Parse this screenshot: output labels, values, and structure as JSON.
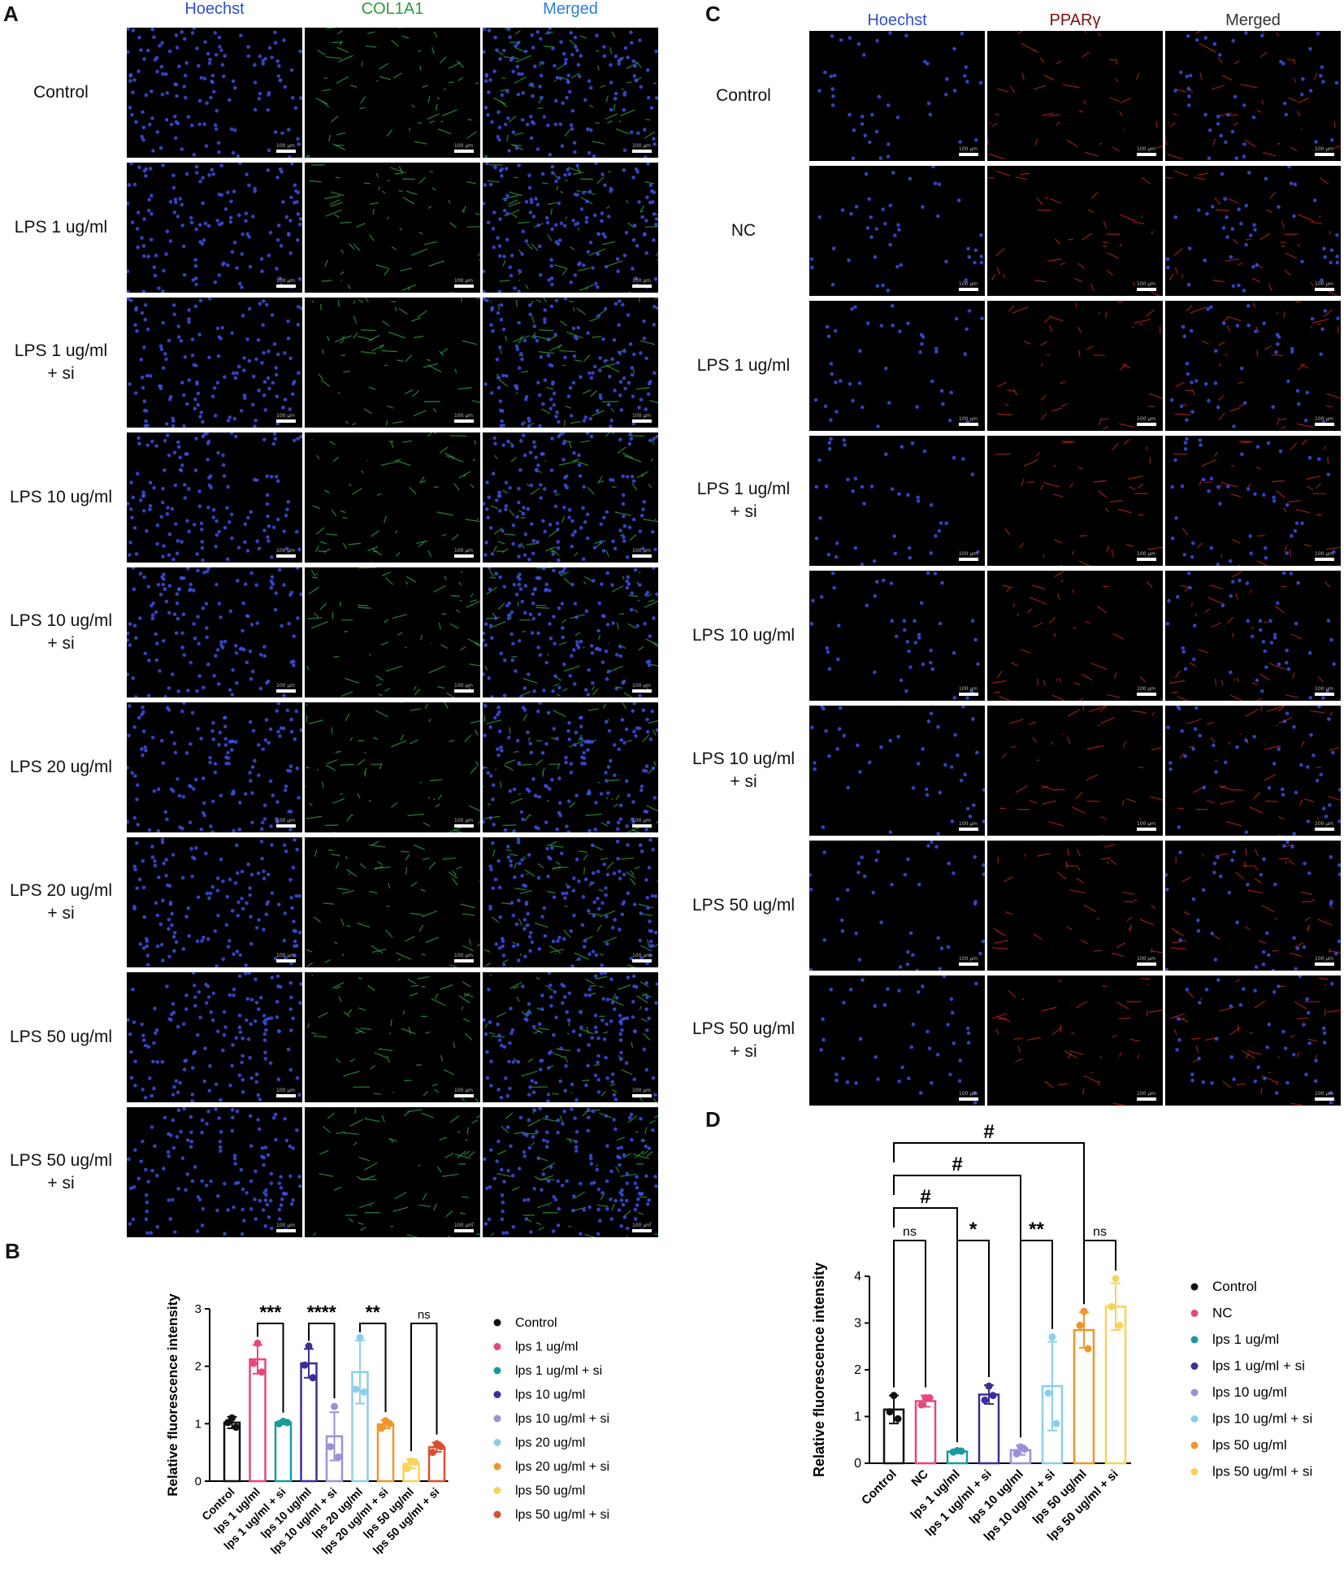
{
  "panels": {
    "A": {
      "letter": "A",
      "columns": [
        "Hoechst",
        "COL1A1",
        "Merged"
      ],
      "column_colors": [
        "#2f4fd0",
        "#2e9a3a",
        "#2f7fd8"
      ],
      "rows": [
        "Control",
        "LPS 1 ug/ml",
        "LPS 1 ug/ml\n+ si",
        "LPS 10 ug/ml",
        "LPS 10 ug/ml\n+ si",
        "LPS 20 ug/ml",
        "LPS 20 ug/ml\n+ si",
        "LPS 50 ug/ml",
        "LPS 50 ug/ml\n+ si"
      ],
      "scale_text": "100 μm"
    },
    "C": {
      "letter": "C",
      "columns": [
        "Hoechst",
        "PPARγ",
        "Merged"
      ],
      "column_colors": [
        "#2f4fd0",
        "#7a1010",
        "#333333"
      ],
      "rows": [
        "Control",
        "NC",
        "LPS 1 ug/ml",
        "LPS 1 ug/ml\n+ si",
        "LPS 10 ug/ml",
        "LPS 10 ug/ml\n+ si",
        "LPS 50 ug/ml",
        "LPS 50 ug/ml\n+ si"
      ],
      "scale_text": "100 μm"
    },
    "B": {
      "letter": "B"
    },
    "D": {
      "letter": "D"
    }
  },
  "chart_data": [
    {
      "id": "B",
      "type": "bar",
      "ylabel": "Relative fluorescence intensity",
      "ylim": [
        0,
        3
      ],
      "yticks": [
        0,
        1,
        2,
        3
      ],
      "categories": [
        "Control",
        "lps 1 ug/ml",
        "lps 1 ug/ml + si",
        "lps 10 ug/ml",
        "lps 10 ug/ml + si",
        "lps 20 ug/ml",
        "lps 20 ug/ml + si",
        "lps 50 ug/ml",
        "lps 50 ug/ml + si"
      ],
      "colors": [
        "#111111",
        "#e8467c",
        "#1a9a9a",
        "#3b2f96",
        "#9a92d6",
        "#8ccfea",
        "#f0952c",
        "#f7d35a",
        "#d9502d"
      ],
      "values": [
        1.02,
        2.12,
        1.02,
        2.05,
        0.78,
        1.9,
        0.99,
        0.3,
        0.59
      ],
      "errors": [
        0.1,
        0.25,
        0.03,
        0.25,
        0.42,
        0.55,
        0.07,
        0.08,
        0.08
      ],
      "points": [
        [
          1.1,
          1.02,
          0.94
        ],
        [
          2.4,
          2.05,
          1.9
        ],
        [
          1.04,
          1.0,
          1.02
        ],
        [
          2.35,
          2.02,
          1.8
        ],
        [
          1.3,
          0.6,
          0.42
        ],
        [
          2.5,
          1.6,
          1.55
        ],
        [
          1.05,
          0.92,
          1.0
        ],
        [
          0.35,
          0.22,
          0.33
        ],
        [
          0.65,
          0.5,
          0.6
        ]
      ],
      "comparisons": [
        {
          "from": 1,
          "to": 2,
          "label": "***"
        },
        {
          "from": 3,
          "to": 4,
          "label": "****"
        },
        {
          "from": 5,
          "to": 6,
          "label": "**"
        },
        {
          "from": 7,
          "to": 8,
          "label": "ns"
        }
      ],
      "legend": [
        "Control",
        "lps 1 ug/ml",
        "lps 1 ug/ml + si",
        "lps 10 ug/ml",
        "lps 10 ug/ml + si",
        "lps 20 ug/ml",
        "lps 20 ug/ml + si",
        "lps 50 ug/ml",
        "lps 50 ug/ml + si"
      ],
      "legend_position": "right"
    },
    {
      "id": "D",
      "type": "bar",
      "ylabel": "Relative fluorescence intensity",
      "ylim": [
        0,
        4
      ],
      "yticks": [
        0,
        1,
        2,
        3,
        4
      ],
      "categories": [
        "Control",
        "NC",
        "lps 1 ug/ml",
        "lps 1 ug/ml + si",
        "lps 10 ug/ml",
        "lps 10 ug/ml + si",
        "lps 50 ug/ml",
        "lps 50 ug/ml + si"
      ],
      "colors": [
        "#111111",
        "#e8467c",
        "#1a9a9a",
        "#3b2f96",
        "#9a92d6",
        "#8ccfea",
        "#f0952c",
        "#f7d35a"
      ],
      "values": [
        1.15,
        1.33,
        0.25,
        1.47,
        0.28,
        1.65,
        2.85,
        3.35
      ],
      "errors": [
        0.3,
        0.12,
        0.03,
        0.2,
        0.1,
        0.95,
        0.38,
        0.5
      ],
      "points": [
        [
          1.45,
          1.1,
          0.95
        ],
        [
          1.4,
          1.25,
          1.4
        ],
        [
          0.27,
          0.24,
          0.26
        ],
        [
          1.65,
          1.35,
          1.45
        ],
        [
          0.35,
          0.2,
          0.3
        ],
        [
          2.7,
          1.5,
          0.85
        ],
        [
          3.25,
          2.95,
          2.45
        ],
        [
          3.95,
          3.35,
          2.95
        ]
      ],
      "comparisons": [
        {
          "from": 0,
          "to": 1,
          "label": "ns",
          "level": 0
        },
        {
          "from": 2,
          "to": 3,
          "label": "*",
          "level": 0
        },
        {
          "from": 4,
          "to": 5,
          "label": "**",
          "level": 0
        },
        {
          "from": 6,
          "to": 7,
          "label": "ns",
          "level": 0
        },
        {
          "from": 0,
          "to": 2,
          "label": "#",
          "level": 1
        },
        {
          "from": 0,
          "to": 4,
          "label": "#",
          "level": 2
        },
        {
          "from": 0,
          "to": 6,
          "label": "#",
          "level": 3
        }
      ],
      "legend": [
        "Control",
        "NC",
        "lps 1 ug/ml",
        "lps 1 ug/ml + si",
        "lps 10 ug/ml",
        "lps 10 ug/ml + si",
        "lps 50 ug/ml",
        "lps 50 ug/ml + si"
      ],
      "legend_position": "right"
    }
  ]
}
